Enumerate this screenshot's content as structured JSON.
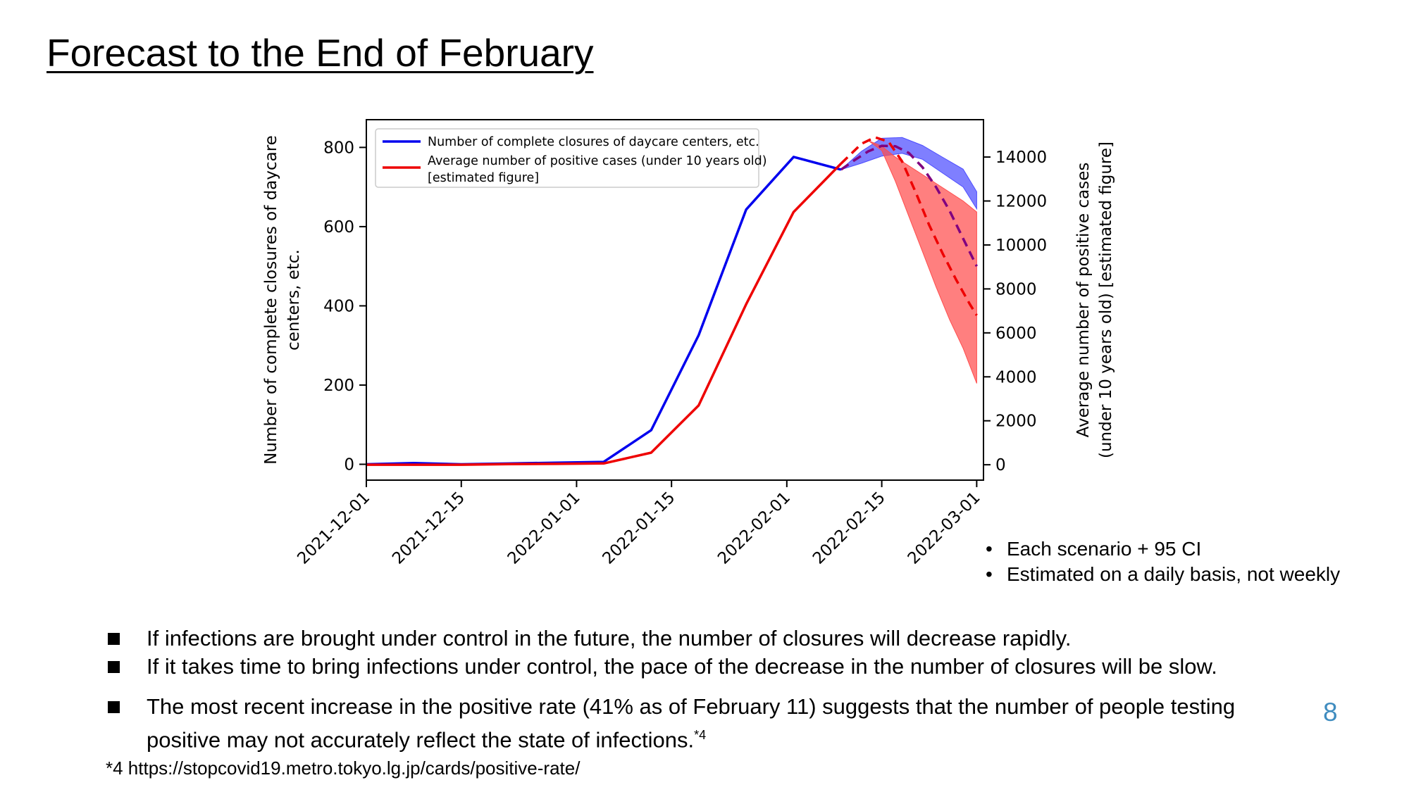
{
  "slide": {
    "title": "Forecast to the End of February",
    "page_number": "8"
  },
  "notes": [
    "Each scenario + 95 CI",
    "Estimated on a daily basis, not weekly"
  ],
  "bullets": [
    "If infections are brought under control in the future, the number of closures will decrease rapidly.",
    "If it takes time to bring infections under control, the pace of the decrease in the number of closures will be slow.",
    "The most recent increase in the positive rate (41% as of February 11) suggests that the number of people testing positive may not accurately reflect the state of infections."
  ],
  "bullet3_superscript": "*4",
  "footnote": "*4 https://stopcovid19.metro.tokyo.lg.jp/cards/positive-rate/",
  "colors": {
    "closures": "#0000ee",
    "positive": "#ee0000",
    "band_slow": "#4d4dff",
    "band_fast": "#ff4d4d",
    "mix": "#800080",
    "page_number": "#3f8cbf"
  },
  "chart_data": {
    "type": "line",
    "dual_axis": true,
    "x_type": "date",
    "xlim": [
      "2021-12-01",
      "2022-03-01"
    ],
    "x_ticks": [
      "2021-12-01",
      "2021-12-15",
      "2022-01-01",
      "2022-01-15",
      "2022-02-01",
      "2022-02-15",
      "2022-03-01"
    ],
    "y_left": {
      "label": "Number of complete closures of daycare centers, etc.",
      "lim": [
        -40,
        870
      ],
      "ticks": [
        0,
        200,
        400,
        600,
        800
      ]
    },
    "y_right": {
      "label": "Average number of positive cases (under 10 years old) [estimated figure]",
      "lim": [
        -700,
        15700
      ],
      "ticks": [
        0,
        2000,
        4000,
        6000,
        8000,
        10000,
        12000,
        14000
      ]
    },
    "legend": {
      "position": "upper-left",
      "entries": [
        {
          "series": "closures",
          "label": "Number of complete closures of daycare centers, etc."
        },
        {
          "series": "positive",
          "label": "Average number of positive cases (under 10 years old) [estimated figure]"
        }
      ]
    },
    "grid": false,
    "series": [
      {
        "key": "closures",
        "axis": "left",
        "color": "#0000ee",
        "x": [
          "2021-12-01",
          "2021-12-08",
          "2021-12-15",
          "2021-12-22",
          "2021-12-29",
          "2022-01-05",
          "2022-01-12",
          "2022-01-19",
          "2022-01-26",
          "2022-02-02",
          "2022-02-09"
        ],
        "y": [
          0,
          3,
          0,
          2,
          4,
          6,
          86,
          326,
          643,
          776,
          744
        ]
      },
      {
        "key": "positive",
        "axis": "right",
        "color": "#ee0000",
        "x": [
          "2021-12-01",
          "2021-12-08",
          "2021-12-15",
          "2021-12-22",
          "2021-12-29",
          "2022-01-05",
          "2022-01-12",
          "2022-01-19",
          "2022-01-26",
          "2022-02-02",
          "2022-02-09"
        ],
        "y": [
          0,
          0,
          0,
          30,
          40,
          60,
          550,
          2700,
          7300,
          11500,
          13700
        ]
      },
      {
        "key": "positive_forecast",
        "axis": "right",
        "color": "#ee0000",
        "style": "dashed",
        "x": [
          "2022-02-09",
          "2022-02-12",
          "2022-02-14",
          "2022-02-16",
          "2022-02-18",
          "2022-02-20",
          "2022-02-22",
          "2022-02-24",
          "2022-02-26",
          "2022-02-28",
          "2022-03-01"
        ],
        "y": [
          13700,
          14600,
          14900,
          14700,
          13800,
          12400,
          10900,
          9600,
          8400,
          7300,
          6800
        ]
      },
      {
        "key": "closures_forecast",
        "axis": "left",
        "color": "#0000ee",
        "style": "dashed",
        "x": [
          "2022-02-09",
          "2022-02-11",
          "2022-02-13",
          "2022-02-15",
          "2022-02-17",
          "2022-02-19",
          "2022-02-21",
          "2022-02-23",
          "2022-02-25",
          "2022-02-27",
          "2022-03-01"
        ],
        "y": [
          744,
          768,
          790,
          804,
          803,
          786,
          750,
          700,
          640,
          570,
          500
        ]
      }
    ],
    "bands": [
      {
        "key": "slow_scenario_ci",
        "axis": "left",
        "color": "#4d4dff",
        "x": [
          "2022-02-09",
          "2022-02-12",
          "2022-02-15",
          "2022-02-18",
          "2022-02-21",
          "2022-02-24",
          "2022-02-27",
          "2022-03-01"
        ],
        "upper": [
          744,
          790,
          823,
          825,
          805,
          775,
          745,
          688
        ],
        "lower": [
          744,
          760,
          778,
          785,
          770,
          735,
          700,
          645
        ]
      },
      {
        "key": "fast_scenario_ci",
        "axis": "right",
        "color": "#ff4d4d",
        "x": [
          "2022-02-13",
          "2022-02-15",
          "2022-02-17",
          "2022-02-19",
          "2022-02-21",
          "2022-02-23",
          "2022-02-25",
          "2022-02-27",
          "2022-03-01"
        ],
        "upper": [
          14750,
          14500,
          14000,
          13600,
          13200,
          12800,
          12400,
          12000,
          11500
        ],
        "lower": [
          14750,
          14300,
          12900,
          11300,
          9700,
          8100,
          6600,
          5300,
          3700
        ]
      }
    ]
  }
}
